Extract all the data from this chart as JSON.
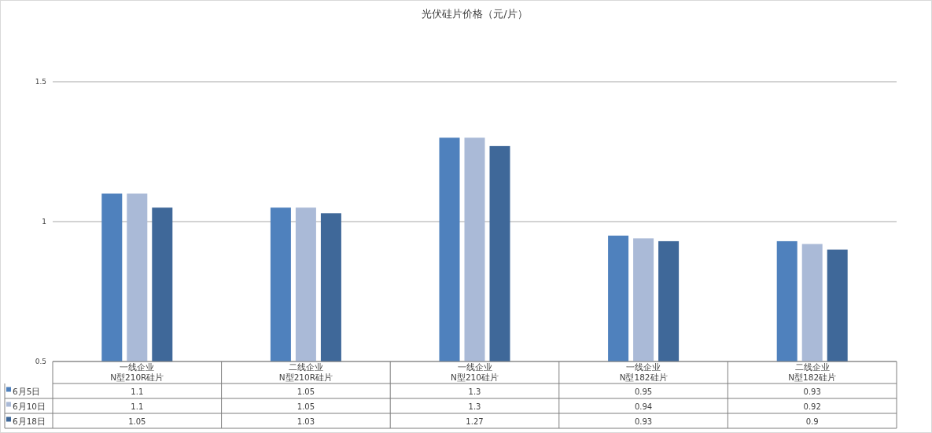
{
  "chart_data": {
    "type": "bar",
    "title": "光伏硅片价格（元/片）",
    "categories": [
      "一线企业\nN型210R硅片",
      "二线企业\nN型210R硅片",
      "一线企业\nN型210硅片",
      "一线企业\nN型182硅片",
      "二线企业\nN型182硅片"
    ],
    "series": [
      {
        "name": "6月5日",
        "color": "#4f81bd",
        "values": [
          1.1,
          1.05,
          1.3,
          0.95,
          0.93
        ]
      },
      {
        "name": "6月10日",
        "color": "#aabad7",
        "values": [
          1.1,
          1.05,
          1.3,
          0.94,
          0.92
        ]
      },
      {
        "name": "6月18日",
        "color": "#3f6899",
        "values": [
          1.05,
          1.03,
          1.27,
          0.93,
          0.9
        ]
      }
    ],
    "ylim": [
      0.5,
      1.5
    ],
    "yticks": [
      0.5,
      1,
      1.5
    ],
    "grid": "y",
    "legend": "bottom left",
    "data_labels": true
  }
}
